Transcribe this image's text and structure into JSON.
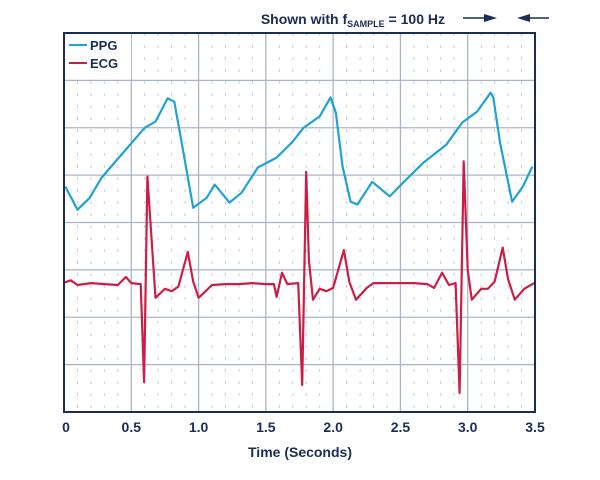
{
  "chart_data": {
    "type": "line",
    "title": "",
    "annotation": {
      "prefix": "Shown with f",
      "subscript": "SAMPLE",
      "suffix": " = 100 Hz"
    },
    "xlabel": "Time (Seconds)",
    "ylabel": "",
    "xlim": [
      0,
      3.5
    ],
    "ylim": [
      0,
      8
    ],
    "x_ticks": [
      "0",
      "0.5",
      "1.0",
      "1.5",
      "2.0",
      "2.5",
      "3.0",
      "3.5"
    ],
    "grid": true,
    "legend_position": "top-left",
    "colors": {
      "frame": "#1b2d55",
      "grid": "#aab4c8",
      "minor_grid": "#c4cbe0"
    },
    "series": [
      {
        "name": "PPG",
        "color": "#1fa3d0",
        "points": [
          [
            0.01,
            4.76
          ],
          [
            0.1,
            4.27
          ],
          [
            0.19,
            4.52
          ],
          [
            0.28,
            4.95
          ],
          [
            0.46,
            5.54
          ],
          [
            0.6,
            6.0
          ],
          [
            0.68,
            6.13
          ],
          [
            0.77,
            6.62
          ],
          [
            0.82,
            6.55
          ],
          [
            0.88,
            5.6
          ],
          [
            0.96,
            4.31
          ],
          [
            1.06,
            4.52
          ],
          [
            1.12,
            4.8
          ],
          [
            1.23,
            4.42
          ],
          [
            1.32,
            4.63
          ],
          [
            1.44,
            5.16
          ],
          [
            1.58,
            5.37
          ],
          [
            1.7,
            5.71
          ],
          [
            1.78,
            6.0
          ],
          [
            1.9,
            6.24
          ],
          [
            1.98,
            6.64
          ],
          [
            2.02,
            6.32
          ],
          [
            2.07,
            5.18
          ],
          [
            2.13,
            4.44
          ],
          [
            2.18,
            4.38
          ],
          [
            2.29,
            4.86
          ],
          [
            2.42,
            4.55
          ],
          [
            2.54,
            4.9
          ],
          [
            2.67,
            5.26
          ],
          [
            2.84,
            5.64
          ],
          [
            2.96,
            6.11
          ],
          [
            3.07,
            6.34
          ],
          [
            3.17,
            6.74
          ],
          [
            3.19,
            6.64
          ],
          [
            3.24,
            5.69
          ],
          [
            3.33,
            4.44
          ],
          [
            3.41,
            4.76
          ],
          [
            3.48,
            5.18
          ]
        ]
      },
      {
        "name": "ECG",
        "color": "#cc1e44",
        "points": [
          [
            0.0,
            2.73
          ],
          [
            0.05,
            2.78
          ],
          [
            0.1,
            2.68
          ],
          [
            0.2,
            2.72
          ],
          [
            0.3,
            2.7
          ],
          [
            0.4,
            2.68
          ],
          [
            0.46,
            2.85
          ],
          [
            0.5,
            2.72
          ],
          [
            0.57,
            2.7
          ],
          [
            0.595,
            0.63
          ],
          [
            0.62,
            4.97
          ],
          [
            0.68,
            2.41
          ],
          [
            0.75,
            2.6
          ],
          [
            0.8,
            2.55
          ],
          [
            0.85,
            2.65
          ],
          [
            0.92,
            3.38
          ],
          [
            0.96,
            2.75
          ],
          [
            1.0,
            2.41
          ],
          [
            1.1,
            2.68
          ],
          [
            1.2,
            2.7
          ],
          [
            1.3,
            2.7
          ],
          [
            1.4,
            2.72
          ],
          [
            1.5,
            2.7
          ],
          [
            1.56,
            2.7
          ],
          [
            1.58,
            2.43
          ],
          [
            1.62,
            2.94
          ],
          [
            1.66,
            2.7
          ],
          [
            1.74,
            2.72
          ],
          [
            1.77,
            0.57
          ],
          [
            1.8,
            5.07
          ],
          [
            1.82,
            3.2
          ],
          [
            1.85,
            2.37
          ],
          [
            1.9,
            2.6
          ],
          [
            1.95,
            2.55
          ],
          [
            2.0,
            2.62
          ],
          [
            2.08,
            3.42
          ],
          [
            2.12,
            2.75
          ],
          [
            2.17,
            2.37
          ],
          [
            2.25,
            2.62
          ],
          [
            2.3,
            2.72
          ],
          [
            2.4,
            2.72
          ],
          [
            2.5,
            2.72
          ],
          [
            2.6,
            2.72
          ],
          [
            2.7,
            2.7
          ],
          [
            2.75,
            2.62
          ],
          [
            2.81,
            2.94
          ],
          [
            2.86,
            2.68
          ],
          [
            2.91,
            2.72
          ],
          [
            2.94,
            0.4
          ],
          [
            2.97,
            5.29
          ],
          [
            3.0,
            3.0
          ],
          [
            3.03,
            2.37
          ],
          [
            3.1,
            2.6
          ],
          [
            3.15,
            2.6
          ],
          [
            3.2,
            2.75
          ],
          [
            3.26,
            3.47
          ],
          [
            3.3,
            2.8
          ],
          [
            3.35,
            2.37
          ],
          [
            3.42,
            2.6
          ],
          [
            3.5,
            2.73
          ]
        ]
      }
    ]
  }
}
